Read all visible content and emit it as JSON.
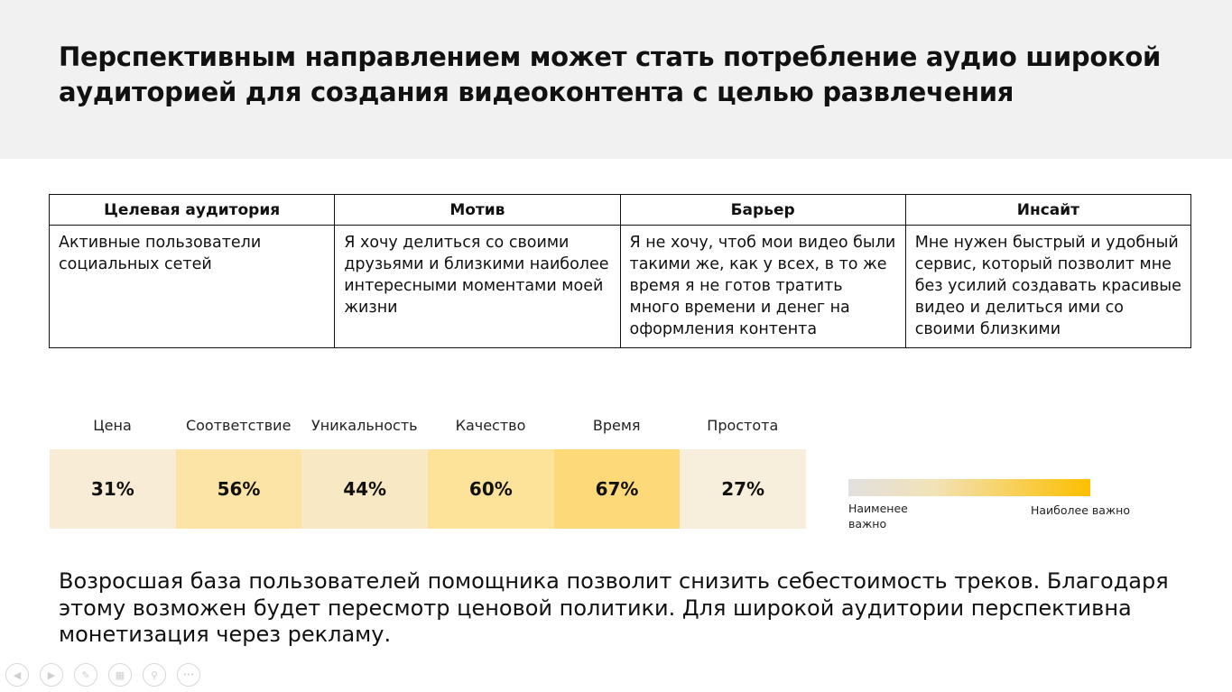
{
  "slide": {
    "title": "Перспективным направлением может стать потребление аудио широкой аудиторией для создания видеоконтента с целью развлечения",
    "table": {
      "headers": [
        "Целевая аудитория",
        "Мотив",
        "Барьер",
        "Инсайт"
      ],
      "row": [
        "Активные пользователи социальных сетей",
        "Я хочу делиться со своими друзьями и близкими наиболее интересными моментами моей жизни",
        "Я не хочу, чтоб мои видео были такими же, как у всех, в то же время я не готов тратить много времени и денег на оформления контента",
        "Мне нужен быстрый и удобный сервис, который позволит мне без усилий создавать красивые видео и делиться ими со своими близкими"
      ]
    },
    "factors": [
      {
        "label": "Цена",
        "value": "31%",
        "color": "#f8ecd6"
      },
      {
        "label": "Соответствие",
        "value": "56%",
        "color": "#fce3a6"
      },
      {
        "label": "Уникальность",
        "value": "44%",
        "color": "#f9e8c4"
      },
      {
        "label": "Качество",
        "value": "60%",
        "color": "#fde29a"
      },
      {
        "label": "Время",
        "value": "67%",
        "color": "#fdd97a"
      },
      {
        "label": "Простота",
        "value": "27%",
        "color": "#f8eedc"
      }
    ],
    "legend": {
      "low": "Наименее важно",
      "high": "Наиболее важно"
    },
    "conclusion": "Возросшая база пользователей помощника позволит снизить себестоимость треков. Благодаря этому возможен будет пересмотр ценовой политики. Для широкой аудитории перспективна монетизация через рекламу."
  },
  "controls": {
    "prev": "◀",
    "next": "▶",
    "pen": "✎",
    "slides": "▦",
    "zoom": "⚲",
    "more": "•••"
  }
}
